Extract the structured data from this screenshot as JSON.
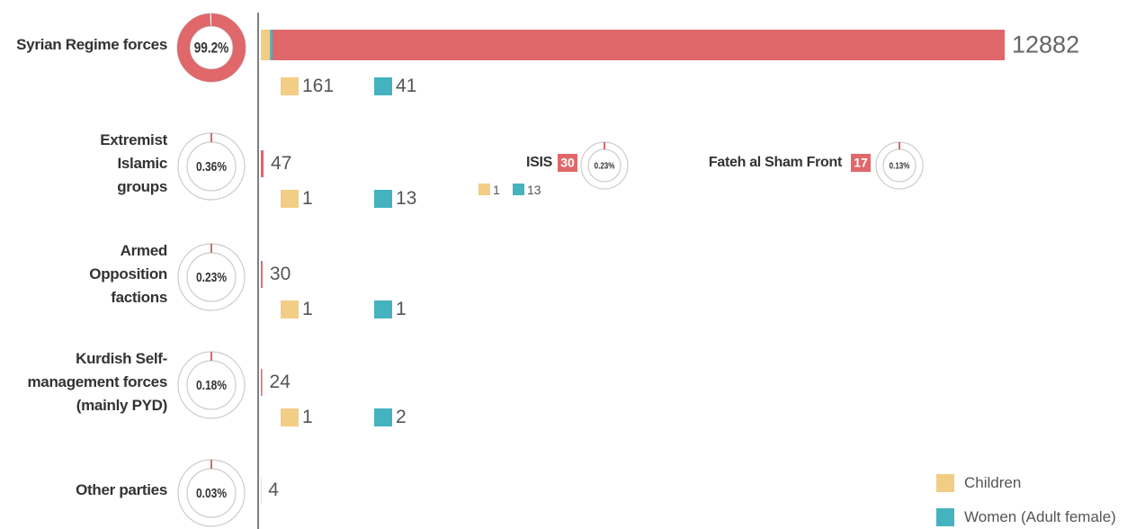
{
  "chart_data": {
    "type": "bar",
    "categories": [
      "Syrian Regime forces",
      "Extremist Islamic groups",
      "Armed Opposition factions",
      "Kurdish Self-management forces (mainly PYD)",
      "Other parties"
    ],
    "values": [
      12882,
      47,
      30,
      24,
      4
    ],
    "color": "#e0676a",
    "shares": [
      99.2,
      0.36,
      0.23,
      0.18,
      0.03
    ],
    "share_labels": [
      "99.2%",
      "0.36%",
      "0.23%",
      "0.18%",
      "0.03%"
    ],
    "series": [
      {
        "name": "Children",
        "color": "#f2cd86",
        "values": [
          161,
          1,
          1,
          1,
          null
        ]
      },
      {
        "name": "Women (Adult female)",
        "color": "#45b2bf",
        "values": [
          41,
          13,
          1,
          2,
          null
        ]
      }
    ],
    "subgroups": [
      {
        "name": "ISIS",
        "value": 30,
        "share": 0.23,
        "share_label": "0.23%",
        "children": 1,
        "women": 13
      },
      {
        "name": "Fateh al Sham Front",
        "value": 17,
        "share": 0.13,
        "share_label": "0.13%"
      }
    ]
  }
}
